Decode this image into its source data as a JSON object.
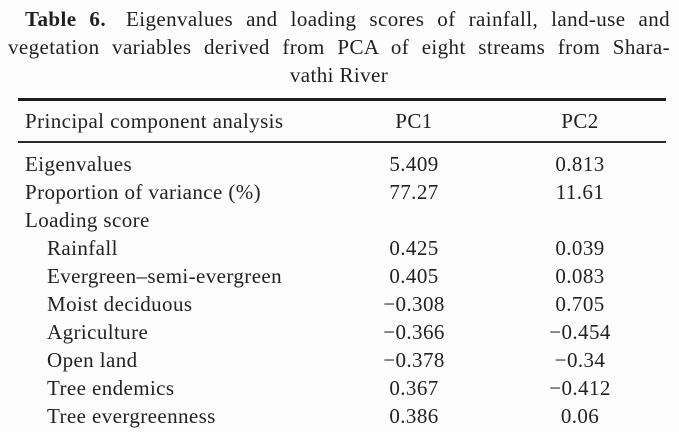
{
  "colors": {
    "ink": "#1f1f1f",
    "background": "#fdfdfd",
    "rule": "#1c1c1c"
  },
  "caption": {
    "label": "Table 6.",
    "line1_rest": "Eigenvalues and loading scores of rainfall, land-use and",
    "line2": "vegetation variables derived from PCA of eight streams from Shara-",
    "line3": "vathi River"
  },
  "table": {
    "header": {
      "label": "Principal component analysis",
      "pc1": "PC1",
      "pc2": "PC2"
    },
    "rows": [
      {
        "label": "Eigenvalues",
        "pc1": "5.409",
        "pc2": "0.813"
      },
      {
        "label": "Proportion of variance (%)",
        "pc1": "77.27",
        "pc2": "11.61"
      },
      {
        "label": "Loading score",
        "pc1": "",
        "pc2": ""
      },
      {
        "label": "Rainfall",
        "pc1": "0.425",
        "pc2": "0.039"
      },
      {
        "label": "Evergreen–semi-evergreen",
        "pc1": "0.405",
        "pc2": "0.083"
      },
      {
        "label": "Moist deciduous",
        "pc1": "−0.308",
        "pc2": "0.705"
      },
      {
        "label": "Agriculture",
        "pc1": "−0.366",
        "pc2": "−0.454"
      },
      {
        "label": "Open land",
        "pc1": "−0.378",
        "pc2": "−0.34"
      },
      {
        "label": "Tree endemics",
        "pc1": "0.367",
        "pc2": "−0.412"
      },
      {
        "label": "Tree evergreenness",
        "pc1": "0.386",
        "pc2": "0.06"
      }
    ]
  }
}
